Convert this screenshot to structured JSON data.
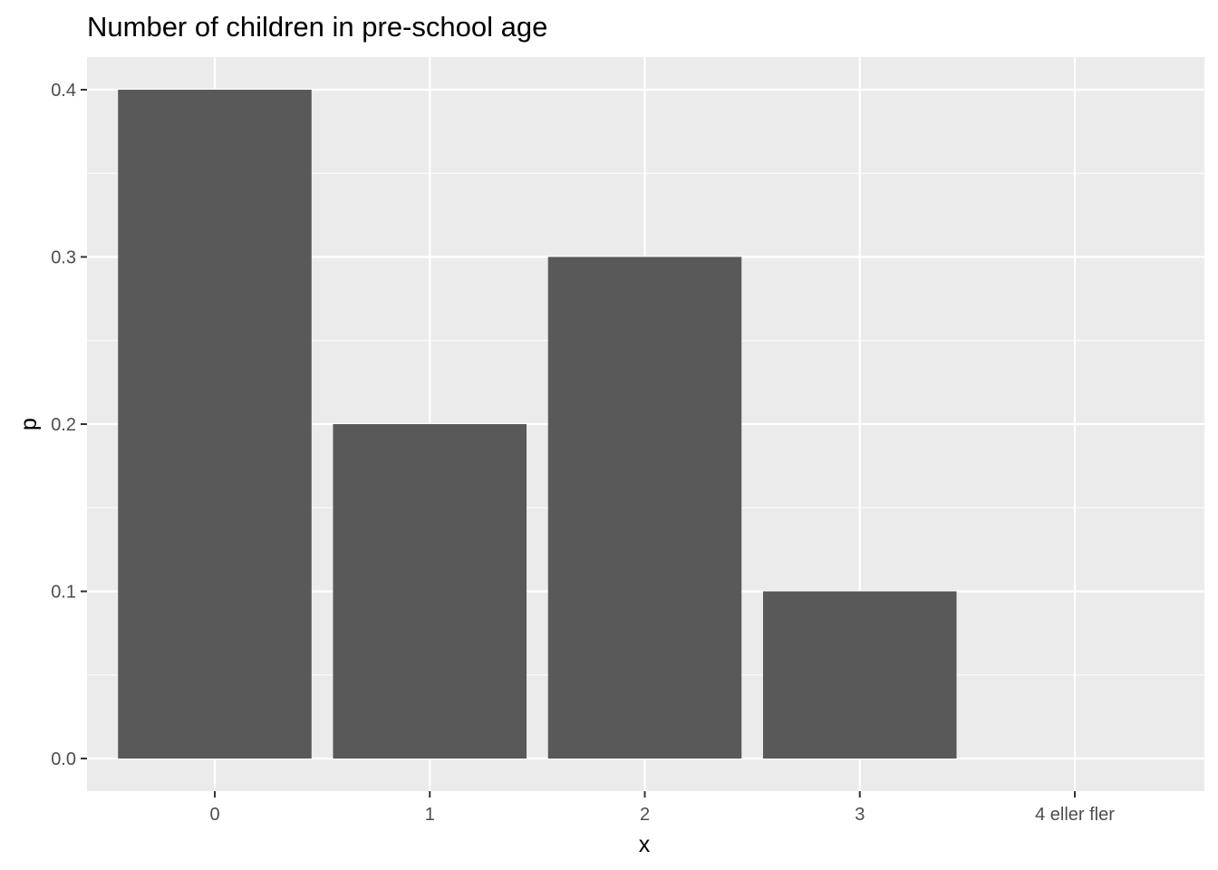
{
  "chart_data": {
    "type": "bar",
    "title": "Number of children in pre-school age",
    "xlabel": "x",
    "ylabel": "p",
    "categories": [
      "0",
      "1",
      "2",
      "3",
      "4 eller fler"
    ],
    "values": [
      0.4,
      0.2,
      0.3,
      0.1,
      0.0
    ],
    "ylim": [
      0,
      0.4
    ],
    "yticks": [
      "0.0",
      "0.1",
      "0.2",
      "0.3",
      "0.4"
    ],
    "grid": true,
    "legend": "none",
    "colors": {
      "bar": "#595959",
      "panel": "#ebebeb",
      "grid": "#ffffff"
    }
  }
}
